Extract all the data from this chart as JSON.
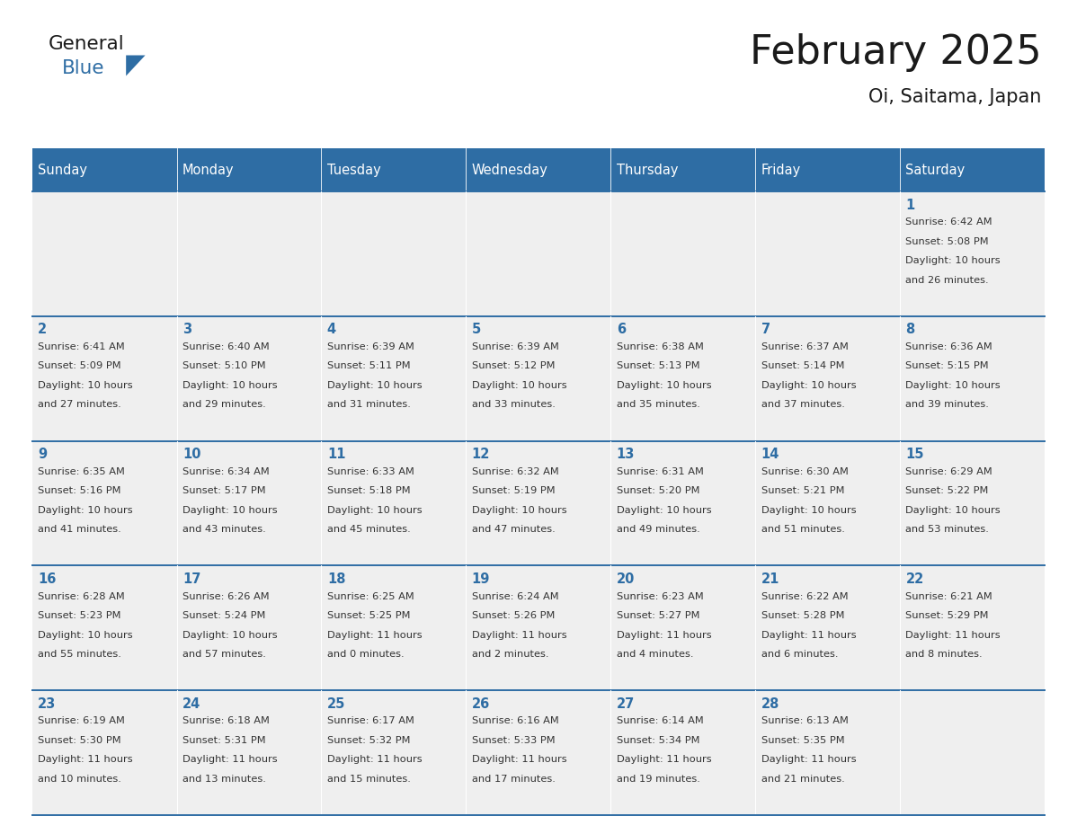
{
  "title": "February 2025",
  "subtitle": "Oi, Saitama, Japan",
  "header_bg": "#2E6DA4",
  "header_text_color": "#FFFFFF",
  "cell_bg": "#EFEFEF",
  "text_color": "#333333",
  "day_number_color": "#2E6DA4",
  "line_color": "#2E6DA4",
  "days_of_week": [
    "Sunday",
    "Monday",
    "Tuesday",
    "Wednesday",
    "Thursday",
    "Friday",
    "Saturday"
  ],
  "weeks": [
    [
      {
        "day": null,
        "info": null
      },
      {
        "day": null,
        "info": null
      },
      {
        "day": null,
        "info": null
      },
      {
        "day": null,
        "info": null
      },
      {
        "day": null,
        "info": null
      },
      {
        "day": null,
        "info": null
      },
      {
        "day": 1,
        "info": "Sunrise: 6:42 AM\nSunset: 5:08 PM\nDaylight: 10 hours\nand 26 minutes."
      }
    ],
    [
      {
        "day": 2,
        "info": "Sunrise: 6:41 AM\nSunset: 5:09 PM\nDaylight: 10 hours\nand 27 minutes."
      },
      {
        "day": 3,
        "info": "Sunrise: 6:40 AM\nSunset: 5:10 PM\nDaylight: 10 hours\nand 29 minutes."
      },
      {
        "day": 4,
        "info": "Sunrise: 6:39 AM\nSunset: 5:11 PM\nDaylight: 10 hours\nand 31 minutes."
      },
      {
        "day": 5,
        "info": "Sunrise: 6:39 AM\nSunset: 5:12 PM\nDaylight: 10 hours\nand 33 minutes."
      },
      {
        "day": 6,
        "info": "Sunrise: 6:38 AM\nSunset: 5:13 PM\nDaylight: 10 hours\nand 35 minutes."
      },
      {
        "day": 7,
        "info": "Sunrise: 6:37 AM\nSunset: 5:14 PM\nDaylight: 10 hours\nand 37 minutes."
      },
      {
        "day": 8,
        "info": "Sunrise: 6:36 AM\nSunset: 5:15 PM\nDaylight: 10 hours\nand 39 minutes."
      }
    ],
    [
      {
        "day": 9,
        "info": "Sunrise: 6:35 AM\nSunset: 5:16 PM\nDaylight: 10 hours\nand 41 minutes."
      },
      {
        "day": 10,
        "info": "Sunrise: 6:34 AM\nSunset: 5:17 PM\nDaylight: 10 hours\nand 43 minutes."
      },
      {
        "day": 11,
        "info": "Sunrise: 6:33 AM\nSunset: 5:18 PM\nDaylight: 10 hours\nand 45 minutes."
      },
      {
        "day": 12,
        "info": "Sunrise: 6:32 AM\nSunset: 5:19 PM\nDaylight: 10 hours\nand 47 minutes."
      },
      {
        "day": 13,
        "info": "Sunrise: 6:31 AM\nSunset: 5:20 PM\nDaylight: 10 hours\nand 49 minutes."
      },
      {
        "day": 14,
        "info": "Sunrise: 6:30 AM\nSunset: 5:21 PM\nDaylight: 10 hours\nand 51 minutes."
      },
      {
        "day": 15,
        "info": "Sunrise: 6:29 AM\nSunset: 5:22 PM\nDaylight: 10 hours\nand 53 minutes."
      }
    ],
    [
      {
        "day": 16,
        "info": "Sunrise: 6:28 AM\nSunset: 5:23 PM\nDaylight: 10 hours\nand 55 minutes."
      },
      {
        "day": 17,
        "info": "Sunrise: 6:26 AM\nSunset: 5:24 PM\nDaylight: 10 hours\nand 57 minutes."
      },
      {
        "day": 18,
        "info": "Sunrise: 6:25 AM\nSunset: 5:25 PM\nDaylight: 11 hours\nand 0 minutes."
      },
      {
        "day": 19,
        "info": "Sunrise: 6:24 AM\nSunset: 5:26 PM\nDaylight: 11 hours\nand 2 minutes."
      },
      {
        "day": 20,
        "info": "Sunrise: 6:23 AM\nSunset: 5:27 PM\nDaylight: 11 hours\nand 4 minutes."
      },
      {
        "day": 21,
        "info": "Sunrise: 6:22 AM\nSunset: 5:28 PM\nDaylight: 11 hours\nand 6 minutes."
      },
      {
        "day": 22,
        "info": "Sunrise: 6:21 AM\nSunset: 5:29 PM\nDaylight: 11 hours\nand 8 minutes."
      }
    ],
    [
      {
        "day": 23,
        "info": "Sunrise: 6:19 AM\nSunset: 5:30 PM\nDaylight: 11 hours\nand 10 minutes."
      },
      {
        "day": 24,
        "info": "Sunrise: 6:18 AM\nSunset: 5:31 PM\nDaylight: 11 hours\nand 13 minutes."
      },
      {
        "day": 25,
        "info": "Sunrise: 6:17 AM\nSunset: 5:32 PM\nDaylight: 11 hours\nand 15 minutes."
      },
      {
        "day": 26,
        "info": "Sunrise: 6:16 AM\nSunset: 5:33 PM\nDaylight: 11 hours\nand 17 minutes."
      },
      {
        "day": 27,
        "info": "Sunrise: 6:14 AM\nSunset: 5:34 PM\nDaylight: 11 hours\nand 19 minutes."
      },
      {
        "day": 28,
        "info": "Sunrise: 6:13 AM\nSunset: 5:35 PM\nDaylight: 11 hours\nand 21 minutes."
      },
      {
        "day": null,
        "info": null
      }
    ]
  ],
  "logo_general_color": "#1a1a1a",
  "logo_blue_color": "#2E6DA4",
  "logo_triangle_color": "#2E6DA4",
  "title_color": "#1a1a1a",
  "subtitle_color": "#1a1a1a"
}
